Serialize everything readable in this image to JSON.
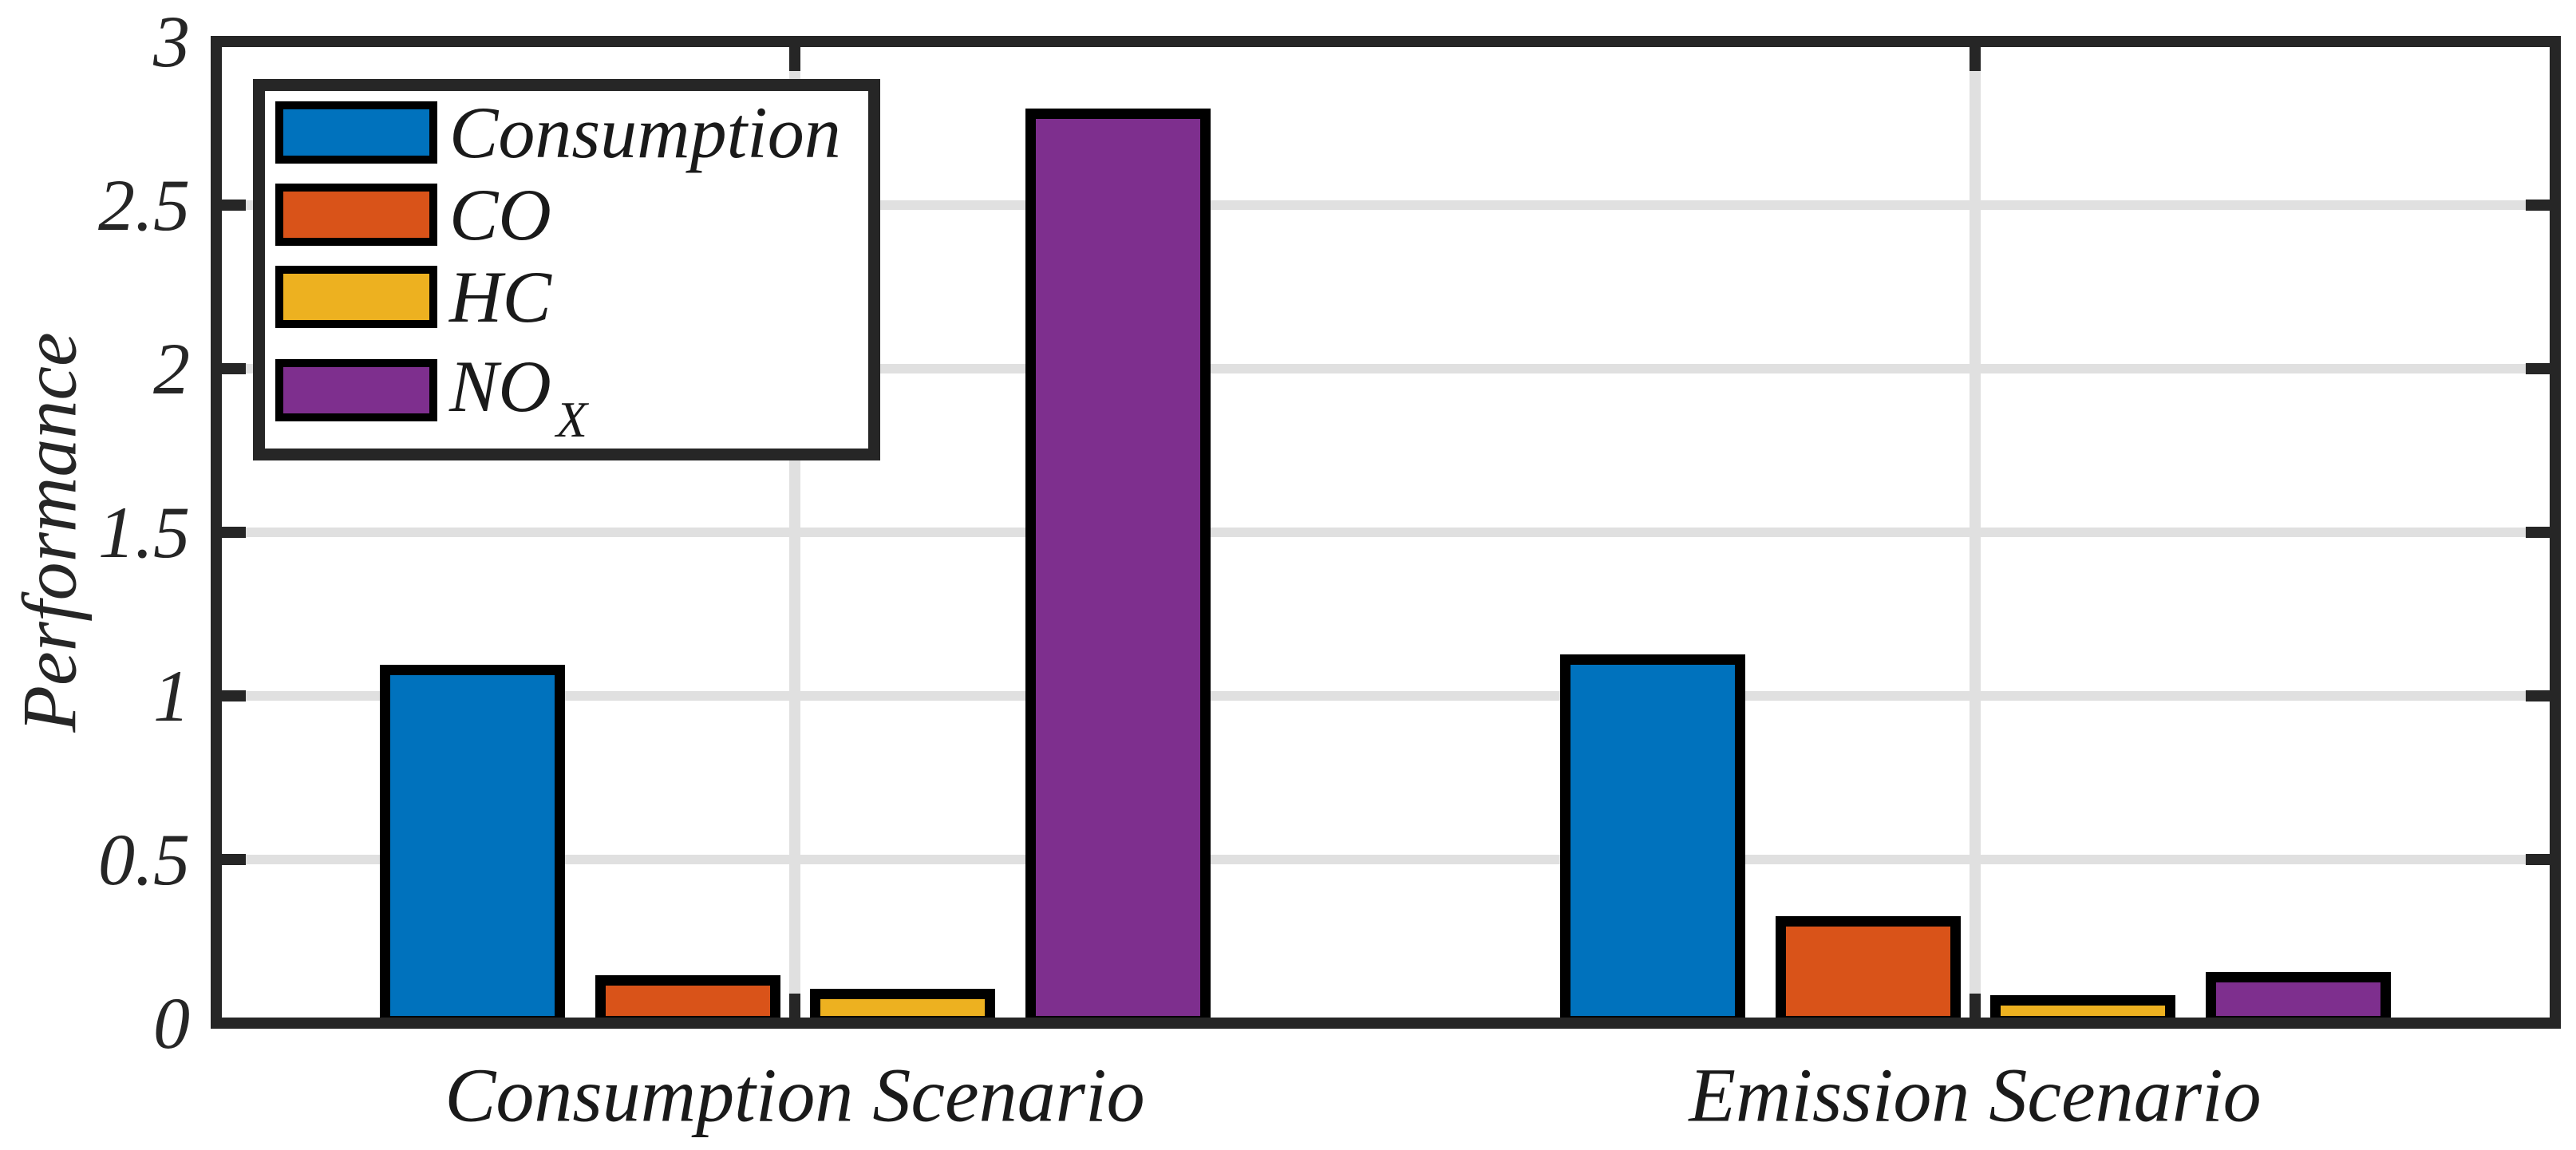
{
  "chart_data": {
    "type": "bar",
    "title": "",
    "ylabel": "Performance",
    "categories": [
      "Consumption Scenario",
      "Emission Scenario"
    ],
    "series": [
      {
        "name": "Consumption",
        "legend_text": "Consumption",
        "legend_sub": "",
        "color": "#0072BD",
        "values": [
          1.08,
          1.11
        ]
      },
      {
        "name": "CO",
        "legend_text": "CO",
        "legend_sub": "",
        "color": "#D95319",
        "values": [
          0.13,
          0.31
        ]
      },
      {
        "name": "HC",
        "legend_text": "HC",
        "legend_sub": "",
        "color": "#EDB120",
        "values": [
          0.09,
          0.07
        ]
      },
      {
        "name": "NOX",
        "legend_text": "NO",
        "legend_sub": "X",
        "color": "#7E2F8E",
        "values": [
          2.78,
          0.14
        ]
      }
    ],
    "ylim": [
      0,
      3
    ],
    "yticks": [
      0,
      0.5,
      1,
      1.5,
      2,
      2.5,
      3
    ],
    "ytick_labels": [
      "0",
      "0.5",
      "1",
      "1.5",
      "2",
      "2.5",
      "3"
    ],
    "grid": true,
    "legend_position": "top-left"
  },
  "colors": {
    "background": "#FFFFFF",
    "axis": "#262626",
    "grid": "#E0E0E0",
    "bar_edge": "#000000",
    "text": "#1a1a1a"
  }
}
